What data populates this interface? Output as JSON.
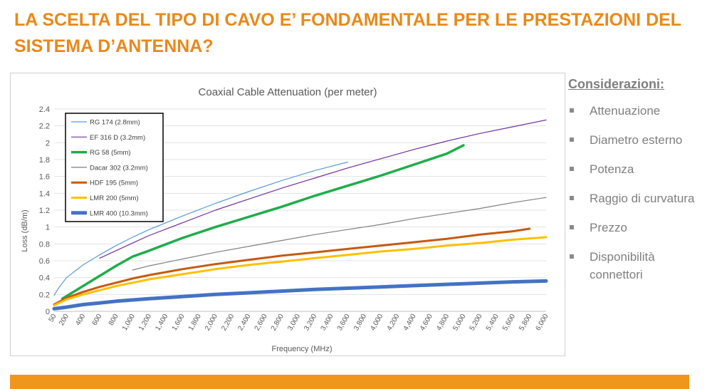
{
  "slide": {
    "title": "LA SCELTA DEL TIPO DI CAVO E’ FONDAMENTALE PER LE PRESTAZIONI DEL SISTEMA D’ANTENNA?",
    "title_color": "#E8891A",
    "accent_bar_color": "#F0961B"
  },
  "considerations": {
    "heading": "Considerazioni:",
    "items": [
      "Attenuazione",
      "Diametro esterno",
      "Potenza",
      "Raggio di curvatura",
      "Prezzo",
      "Disponibilità connettori"
    ]
  },
  "chart_data": {
    "type": "line",
    "title": "Coaxial Cable Attenuation (per meter)",
    "xlabel": "Frequency (MHz)",
    "ylabel": "Loss (dB/m)",
    "ylim": [
      0,
      2.4
    ],
    "yticks": [
      "0",
      "0.2",
      "0.4",
      "0.6",
      "0.8",
      "1",
      "1.2",
      "1.4",
      "1.6",
      "1.8",
      "2",
      "2.2",
      "2.4"
    ],
    "xticks": [
      "50",
      "200",
      "400",
      "600",
      "800",
      "1,000",
      "1,200",
      "1,400",
      "1,600",
      "1,800",
      "2,000",
      "2,200",
      "2,400",
      "2,600",
      "2,800",
      "3,000",
      "3,200",
      "3,400",
      "3,600",
      "3,800",
      "4,000",
      "4,200",
      "4,400",
      "4,600",
      "4,800",
      "5,000",
      "5,200",
      "5,400",
      "5,600",
      "5,800",
      "6,000"
    ],
    "grid": true,
    "legend_position": "top-left",
    "series": [
      {
        "name": "RG 174 (2.8mm)",
        "color": "#5B9BD5",
        "width": 1.2,
        "x": [
          50,
          100,
          200,
          400,
          600,
          800,
          1000,
          1200,
          1600,
          2000,
          2400,
          2800,
          3200,
          3600
        ],
        "y": [
          0.19,
          0.27,
          0.4,
          0.55,
          0.67,
          0.78,
          0.88,
          0.97,
          1.13,
          1.28,
          1.42,
          1.55,
          1.67,
          1.77
        ]
      },
      {
        "name": "EF 316 D (3.2mm)",
        "color": "#7030A0",
        "width": 1.2,
        "x": [
          600,
          800,
          1000,
          1200,
          1600,
          2000,
          2400,
          2800,
          3200,
          3600,
          4000,
          4400,
          4800,
          5200,
          5600,
          6000
        ],
        "y": [
          0.63,
          0.72,
          0.81,
          0.9,
          1.05,
          1.2,
          1.33,
          1.46,
          1.58,
          1.7,
          1.81,
          1.92,
          2.02,
          2.11,
          2.19,
          2.27
        ]
      },
      {
        "name": "RG 58 (5mm)",
        "color": "#1FAD4B",
        "width": 3.5,
        "x": [
          150,
          400,
          600,
          800,
          1000,
          1200,
          1600,
          2000,
          2400,
          2800,
          3200,
          3600,
          4000,
          4400,
          4800,
          5000
        ],
        "y": [
          0.15,
          0.3,
          0.42,
          0.54,
          0.65,
          0.72,
          0.87,
          1.0,
          1.12,
          1.24,
          1.37,
          1.49,
          1.61,
          1.74,
          1.87,
          1.97
        ]
      },
      {
        "name": "Dacar 302 (3.2mm)",
        "color": "#7F7F7F",
        "width": 1.2,
        "x": [
          1000,
          1200,
          1600,
          2000,
          2400,
          2800,
          3200,
          3600,
          4000,
          4400,
          4800,
          5200,
          5600,
          6000
        ],
        "y": [
          0.49,
          0.54,
          0.62,
          0.7,
          0.77,
          0.84,
          0.91,
          0.97,
          1.03,
          1.1,
          1.16,
          1.22,
          1.29,
          1.35
        ]
      },
      {
        "name": "HDF 195 (5mm)",
        "color": "#C55A11",
        "width": 3,
        "x": [
          50,
          200,
          400,
          600,
          800,
          1000,
          1200,
          1600,
          2000,
          2400,
          2800,
          3200,
          3600,
          4000,
          4400,
          4800,
          5200,
          5600,
          5800
        ],
        "y": [
          0.08,
          0.16,
          0.23,
          0.29,
          0.34,
          0.39,
          0.43,
          0.5,
          0.56,
          0.61,
          0.66,
          0.7,
          0.74,
          0.78,
          0.82,
          0.86,
          0.91,
          0.95,
          0.98
        ]
      },
      {
        "name": "LMR 200 (5mm)",
        "color": "#FFC000",
        "width": 3,
        "x": [
          50,
          200,
          400,
          600,
          800,
          1000,
          1200,
          1600,
          2000,
          2400,
          2800,
          3200,
          3600,
          4000,
          4400,
          4800,
          5200,
          5600,
          6000
        ],
        "y": [
          0.07,
          0.14,
          0.2,
          0.25,
          0.3,
          0.34,
          0.38,
          0.44,
          0.5,
          0.55,
          0.59,
          0.63,
          0.67,
          0.71,
          0.74,
          0.78,
          0.81,
          0.85,
          0.88
        ]
      },
      {
        "name": "LMR 400 (10.3mm)",
        "color": "#4472C4",
        "width": 5,
        "x": [
          50,
          200,
          400,
          600,
          800,
          1000,
          1200,
          1600,
          2000,
          2400,
          2800,
          3200,
          3600,
          4000,
          4400,
          4800,
          5200,
          5600,
          6000
        ],
        "y": [
          0.03,
          0.05,
          0.08,
          0.1,
          0.12,
          0.135,
          0.15,
          0.175,
          0.2,
          0.22,
          0.24,
          0.26,
          0.275,
          0.29,
          0.305,
          0.32,
          0.335,
          0.35,
          0.36
        ]
      }
    ]
  }
}
